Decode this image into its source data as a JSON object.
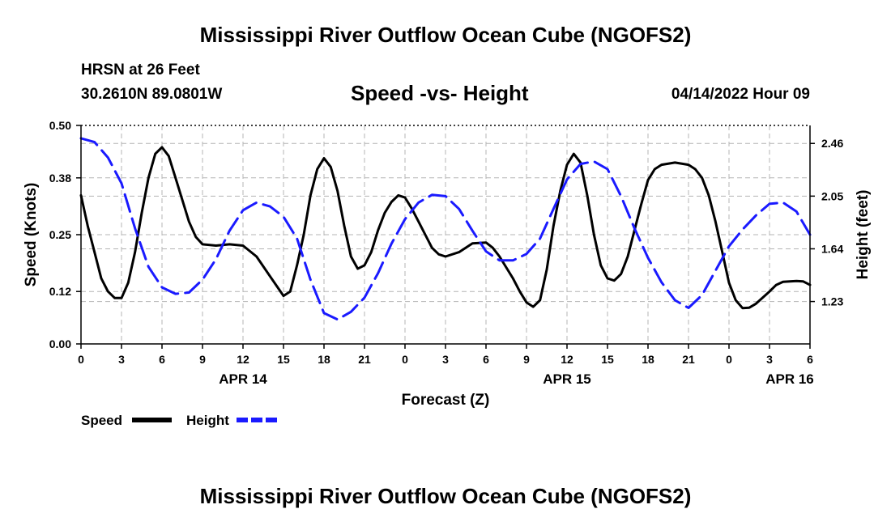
{
  "header": {
    "title": "Mississippi River Outflow Ocean Cube (NGOFS2)",
    "station": "HRSN at 26 Feet",
    "coords": "30.2610N  89.0801W",
    "chart_title": "Speed -vs- Height",
    "datetime": "04/14/2022 Hour 09"
  },
  "footer": {
    "title": "Mississippi River Outflow Ocean Cube (NGOFS2)"
  },
  "colors": {
    "speed": "#000000",
    "height": "#1a1aff",
    "grid": "#b4b4b4"
  },
  "chart_data": {
    "type": "line",
    "title": "Speed -vs- Height",
    "xlabel": "Forecast (Z)",
    "ylabel": "Speed (Knots)",
    "y2label": "Height (feet)",
    "x_unit": "hours since 2022-04-14 00Z",
    "xlim": [
      0,
      54
    ],
    "ylim": [
      0,
      0.5
    ],
    "y2lim": [
      0.9,
      2.6
    ],
    "x_ticks": [
      0,
      3,
      6,
      9,
      12,
      15,
      18,
      21,
      24,
      27,
      30,
      33,
      36,
      39,
      42,
      45,
      48,
      51,
      54
    ],
    "x_tick_labels": [
      "0",
      "3",
      "6",
      "9",
      "12",
      "15",
      "18",
      "21",
      "0",
      "3",
      "6",
      "9",
      "12",
      "15",
      "18",
      "21",
      "0",
      "3",
      "6"
    ],
    "date_labels": [
      {
        "x": 12,
        "label": "APR 14"
      },
      {
        "x": 36,
        "label": "APR 15"
      },
      {
        "x": 52.5,
        "label": "APR 16"
      }
    ],
    "y_ticks": [
      0.0,
      0.12,
      0.25,
      0.38,
      0.5
    ],
    "y_tick_labels": [
      "0.00",
      "0.12",
      "0.25",
      "0.38",
      "0.50"
    ],
    "y2_ticks": [
      1.23,
      1.64,
      2.05,
      2.46
    ],
    "y2_tick_labels": [
      "1.23",
      "1.64",
      "2.05",
      "2.46"
    ],
    "legend": [
      {
        "name": "Speed",
        "style": "solid"
      },
      {
        "name": "Height",
        "style": "dashed"
      }
    ],
    "series": [
      {
        "name": "Speed",
        "axis": "left",
        "style": "solid",
        "points": [
          [
            0,
            0.34
          ],
          [
            0.5,
            0.27
          ],
          [
            1,
            0.21
          ],
          [
            1.5,
            0.15
          ],
          [
            2,
            0.12
          ],
          [
            2.5,
            0.105
          ],
          [
            3,
            0.105
          ],
          [
            3.5,
            0.14
          ],
          [
            4,
            0.21
          ],
          [
            4.5,
            0.3
          ],
          [
            5,
            0.38
          ],
          [
            5.5,
            0.435
          ],
          [
            6,
            0.45
          ],
          [
            6.5,
            0.43
          ],
          [
            7,
            0.38
          ],
          [
            7.5,
            0.33
          ],
          [
            8,
            0.28
          ],
          [
            8.5,
            0.245
          ],
          [
            9,
            0.228
          ],
          [
            10,
            0.225
          ],
          [
            11,
            0.228
          ],
          [
            12,
            0.225
          ],
          [
            13,
            0.2
          ],
          [
            14,
            0.155
          ],
          [
            15,
            0.11
          ],
          [
            15.5,
            0.12
          ],
          [
            16,
            0.18
          ],
          [
            16.5,
            0.25
          ],
          [
            17,
            0.34
          ],
          [
            17.5,
            0.4
          ],
          [
            18,
            0.425
          ],
          [
            18.5,
            0.405
          ],
          [
            19,
            0.35
          ],
          [
            19.5,
            0.27
          ],
          [
            20,
            0.2
          ],
          [
            20.5,
            0.172
          ],
          [
            21,
            0.18
          ],
          [
            21.5,
            0.21
          ],
          [
            22,
            0.26
          ],
          [
            22.5,
            0.3
          ],
          [
            23,
            0.325
          ],
          [
            23.5,
            0.34
          ],
          [
            24,
            0.335
          ],
          [
            24.5,
            0.31
          ],
          [
            25,
            0.28
          ],
          [
            25.5,
            0.25
          ],
          [
            26,
            0.22
          ],
          [
            26.5,
            0.205
          ],
          [
            27,
            0.2
          ],
          [
            28,
            0.21
          ],
          [
            29,
            0.23
          ],
          [
            30,
            0.232
          ],
          [
            30.5,
            0.22
          ],
          [
            31,
            0.2
          ],
          [
            32,
            0.15
          ],
          [
            32.5,
            0.12
          ],
          [
            33,
            0.095
          ],
          [
            33.5,
            0.085
          ],
          [
            34,
            0.1
          ],
          [
            34.5,
            0.17
          ],
          [
            35,
            0.27
          ],
          [
            35.5,
            0.35
          ],
          [
            36,
            0.41
          ],
          [
            36.5,
            0.435
          ],
          [
            37,
            0.415
          ],
          [
            37.5,
            0.34
          ],
          [
            38,
            0.25
          ],
          [
            38.5,
            0.18
          ],
          [
            39,
            0.15
          ],
          [
            39.5,
            0.145
          ],
          [
            40,
            0.16
          ],
          [
            40.5,
            0.2
          ],
          [
            41,
            0.26
          ],
          [
            41.5,
            0.32
          ],
          [
            42,
            0.375
          ],
          [
            42.5,
            0.4
          ],
          [
            43,
            0.41
          ],
          [
            44,
            0.415
          ],
          [
            45,
            0.41
          ],
          [
            45.5,
            0.4
          ],
          [
            46,
            0.38
          ],
          [
            46.5,
            0.34
          ],
          [
            47,
            0.28
          ],
          [
            47.5,
            0.21
          ],
          [
            48,
            0.14
          ],
          [
            48.5,
            0.1
          ],
          [
            49,
            0.082
          ],
          [
            49.5,
            0.083
          ],
          [
            50,
            0.092
          ],
          [
            51,
            0.12
          ],
          [
            51.5,
            0.135
          ],
          [
            52,
            0.142
          ],
          [
            53,
            0.144
          ],
          [
            53.5,
            0.143
          ],
          [
            54,
            0.135
          ]
        ]
      },
      {
        "name": "Height",
        "axis": "right",
        "style": "dashed",
        "points": [
          [
            0,
            2.5
          ],
          [
            1,
            2.47
          ],
          [
            2,
            2.35
          ],
          [
            3,
            2.15
          ],
          [
            4,
            1.8
          ],
          [
            5,
            1.5
          ],
          [
            6,
            1.34
          ],
          [
            7,
            1.29
          ],
          [
            8,
            1.3
          ],
          [
            9,
            1.4
          ],
          [
            10,
            1.56
          ],
          [
            11,
            1.78
          ],
          [
            12,
            1.94
          ],
          [
            13,
            2.0
          ],
          [
            14,
            1.97
          ],
          [
            15,
            1.89
          ],
          [
            16,
            1.72
          ],
          [
            17,
            1.4
          ],
          [
            18,
            1.14
          ],
          [
            19,
            1.09
          ],
          [
            20,
            1.15
          ],
          [
            21,
            1.26
          ],
          [
            22,
            1.45
          ],
          [
            23,
            1.68
          ],
          [
            24,
            1.87
          ],
          [
            25,
            2.0
          ],
          [
            26,
            2.06
          ],
          [
            27,
            2.05
          ],
          [
            28,
            1.95
          ],
          [
            29,
            1.78
          ],
          [
            30,
            1.62
          ],
          [
            31,
            1.55
          ],
          [
            32,
            1.55
          ],
          [
            33,
            1.6
          ],
          [
            34,
            1.72
          ],
          [
            35,
            1.95
          ],
          [
            36,
            2.18
          ],
          [
            37,
            2.3
          ],
          [
            38,
            2.32
          ],
          [
            39,
            2.26
          ],
          [
            40,
            2.05
          ],
          [
            41,
            1.8
          ],
          [
            42,
            1.57
          ],
          [
            43,
            1.38
          ],
          [
            44,
            1.24
          ],
          [
            45,
            1.18
          ],
          [
            46,
            1.28
          ],
          [
            47,
            1.47
          ],
          [
            48,
            1.66
          ],
          [
            49,
            1.79
          ],
          [
            50,
            1.9
          ],
          [
            51,
            1.99
          ],
          [
            52,
            2.0
          ],
          [
            53,
            1.93
          ],
          [
            54,
            1.75
          ]
        ]
      }
    ]
  }
}
